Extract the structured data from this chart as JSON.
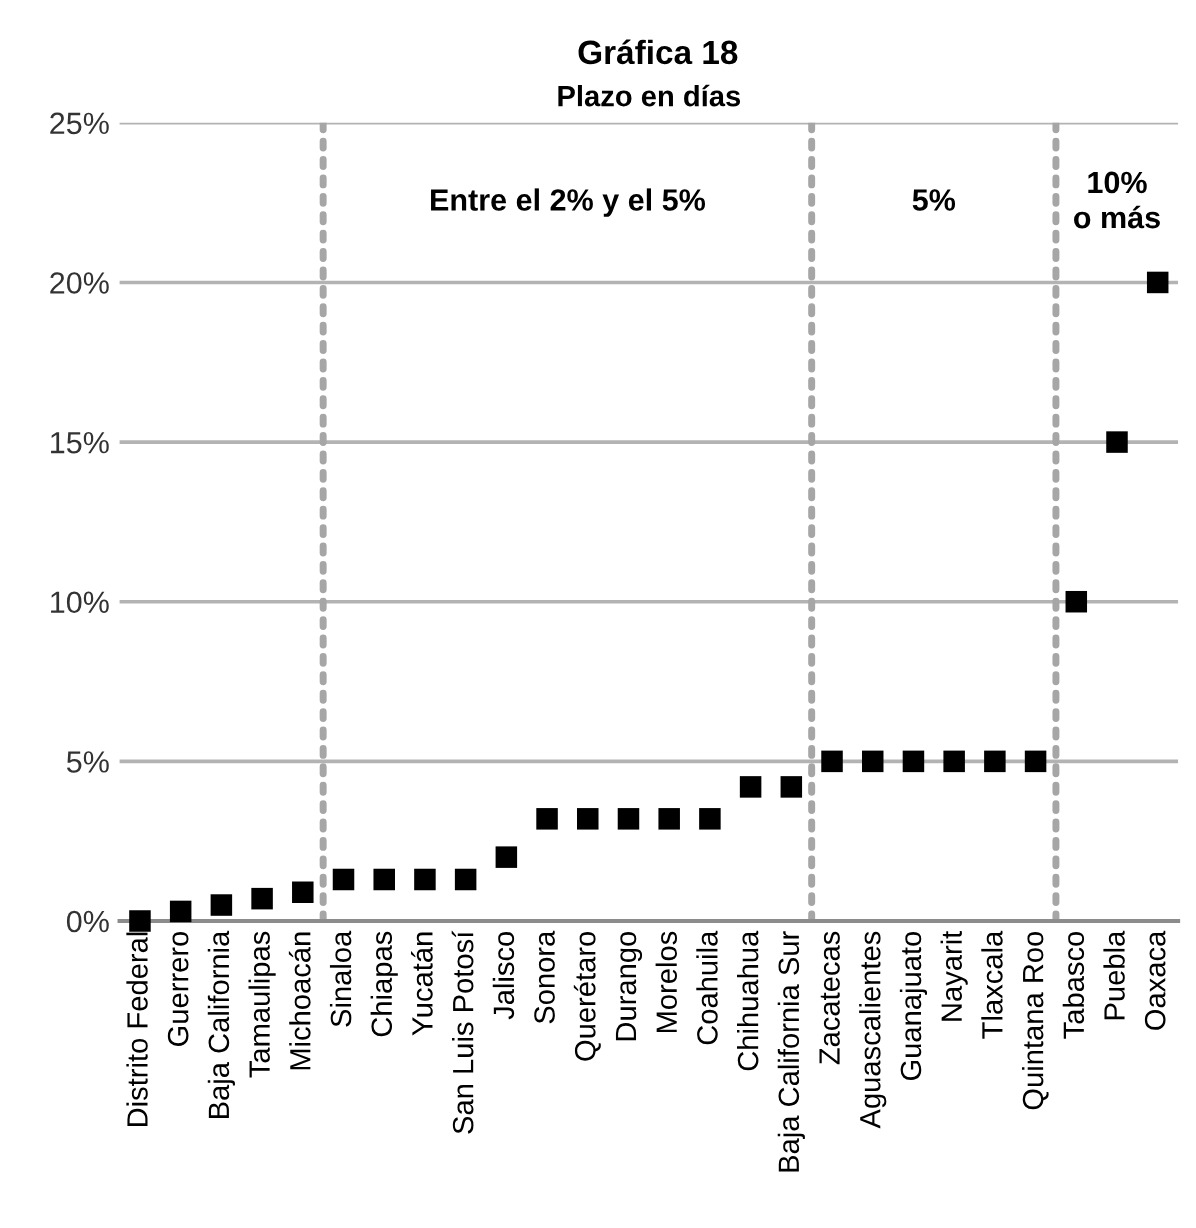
{
  "chart_data": {
    "type": "scatter",
    "title": "Gráfica 18",
    "subtitle": "Plazo en días",
    "categories": [
      "Distrito Federal",
      "Guerrero",
      "Baja California",
      "Tamaulipas",
      "Michoacán",
      "Sinaloa",
      "Chiapas",
      "Yucatán",
      "San Luis Potosí",
      "Jalisco",
      "Sonora",
      "Querétaro",
      "Durango",
      "Morelos",
      "Coahuila",
      "Chihuahua",
      "Baja California Sur",
      "Zacatecas",
      "Aguascalientes",
      "Guanajuato",
      "Nayarit",
      "Tlaxcala",
      "Quintana Roo",
      "Tabasco",
      "Puebla",
      "Oaxaca"
    ],
    "series": [
      {
        "color": "#000000",
        "values": [
          0,
          0.3,
          0.5,
          0.7,
          0.9,
          1.3,
          1.3,
          1.3,
          1.3,
          2,
          3.2,
          3.2,
          3.2,
          3.2,
          3.2,
          4.2,
          4.2,
          5,
          5,
          5,
          5,
          5,
          5,
          10,
          15,
          20
        ]
      }
    ],
    "ylim": [
      0,
      25
    ],
    "yticks": [
      {
        "value": 0,
        "label": "0%"
      },
      {
        "value": 5,
        "label": "5%"
      },
      {
        "value": 10,
        "label": "10%"
      },
      {
        "value": 15,
        "label": "15%"
      },
      {
        "value": 20,
        "label": "20%"
      },
      {
        "value": 25,
        "label": "25%"
      }
    ],
    "grid": "y",
    "marker": "square",
    "annotations": [
      "Entre el 2% y el 5%",
      "5%",
      "10%\no más"
    ]
  }
}
